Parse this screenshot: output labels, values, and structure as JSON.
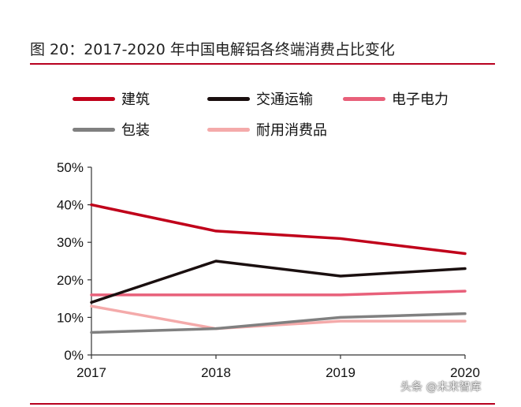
{
  "title": "图 20：2017-2020 年中国电解铝各终端消费占比变化",
  "watermark": "头条 @未来智库",
  "colors": {
    "rule": "#b8001f"
  },
  "chart_data": {
    "type": "line",
    "x": [
      "2017",
      "2018",
      "2019",
      "2020"
    ],
    "ylim": [
      0,
      50
    ],
    "yticks": [
      "0%",
      "10%",
      "20%",
      "30%",
      "40%",
      "50%"
    ],
    "xlabel": "",
    "ylabel": "",
    "legend_position": "top",
    "series": [
      {
        "name": "建筑",
        "color": "#c0001a",
        "values": [
          40,
          33,
          31,
          27
        ]
      },
      {
        "name": "交通运输",
        "color": "#1a0f0f",
        "values": [
          14,
          25,
          21,
          23
        ]
      },
      {
        "name": "电子电力",
        "color": "#e8607a",
        "values": [
          16,
          16,
          16,
          17
        ]
      },
      {
        "name": "包装",
        "color": "#808080",
        "values": [
          6,
          7,
          10,
          11
        ]
      },
      {
        "name": "耐用消费品",
        "color": "#f4aaaa",
        "values": [
          13,
          7,
          9,
          9
        ]
      }
    ]
  }
}
